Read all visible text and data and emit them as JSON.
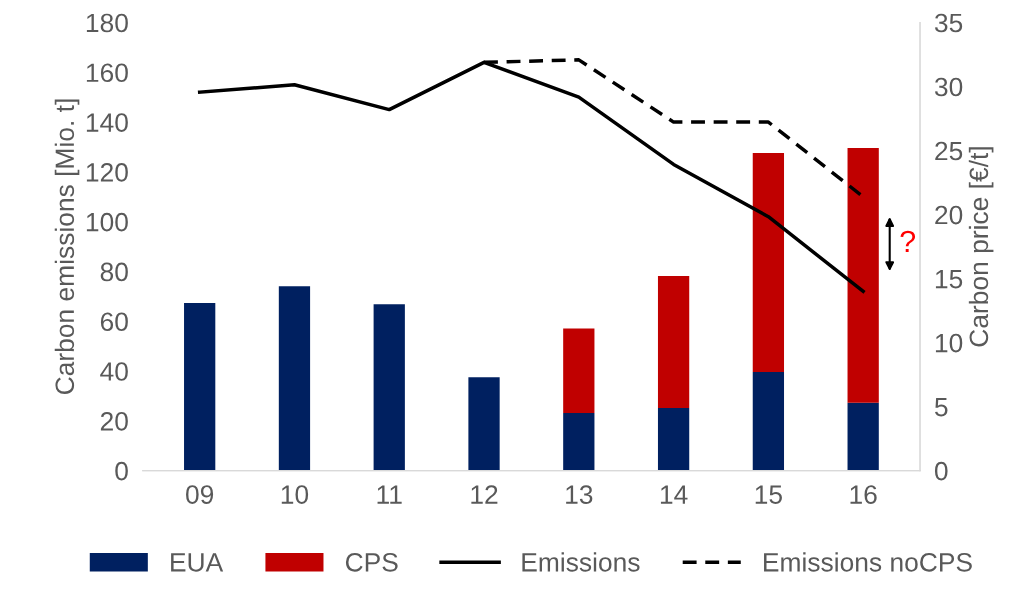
{
  "chart_data": {
    "type": "bar",
    "stacked": true,
    "categories": [
      "09",
      "10",
      "11",
      "12",
      "13",
      "14",
      "15",
      "16"
    ],
    "ylabel": "Carbon emissions [Mio. t]",
    "y2label": "Carbon price [€/t]",
    "ylim": [
      0,
      180
    ],
    "yticks": [
      0,
      20,
      40,
      60,
      80,
      100,
      120,
      140,
      160,
      180
    ],
    "y2lim": [
      0,
      35
    ],
    "y2ticks": [
      0,
      5,
      10,
      15,
      20,
      25,
      30,
      35
    ],
    "series": [
      {
        "name": "EUA",
        "axis": "y2",
        "color": "#002060",
        "values": [
          13.1,
          14.4,
          13.0,
          7.3,
          4.5,
          4.9,
          7.7,
          5.3
        ]
      },
      {
        "name": "CPS",
        "axis": "y2",
        "color": "#c00000",
        "values": [
          null,
          null,
          null,
          null,
          6.6,
          10.3,
          17.1,
          19.9
        ]
      },
      {
        "name": "Emissions",
        "type": "line",
        "axis": "y",
        "color": "#000000",
        "line_style": "solid",
        "values": [
          152,
          155,
          145,
          164,
          150,
          123,
          102,
          72
        ]
      },
      {
        "name": "Emissions noCPS",
        "type": "line",
        "axis": "y",
        "color": "#000000",
        "line_style": "dashed",
        "values": [
          null,
          null,
          null,
          164,
          165,
          140,
          140,
          110
        ]
      }
    ],
    "annotations": [
      "?"
    ],
    "legend": "bottom",
    "grid": false,
    "marker": "none"
  }
}
